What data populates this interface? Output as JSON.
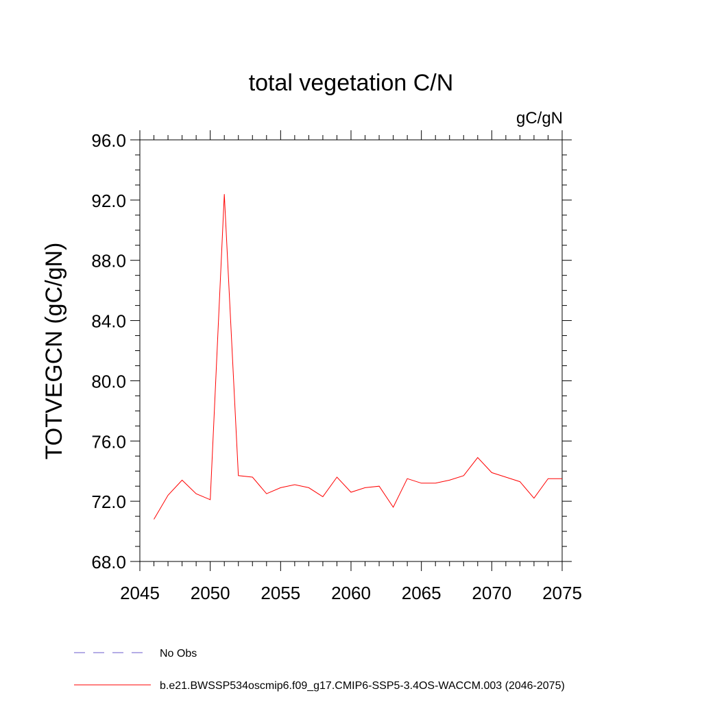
{
  "chart_data": {
    "type": "line",
    "title": "total vegetation C/N",
    "units": "gC/gN",
    "xlabel": "",
    "ylabel": "TOTVEGCN  (gC/gN)",
    "xlim": [
      2045,
      2075
    ],
    "ylim": [
      68.0,
      96.0
    ],
    "xticks": [
      "2045",
      "2050",
      "2055",
      "2060",
      "2065",
      "2070",
      "2075"
    ],
    "yticks": [
      "68.0",
      "72.0",
      "76.0",
      "80.0",
      "84.0",
      "88.0",
      "92.0",
      "96.0"
    ],
    "grid": false,
    "series": [
      {
        "name": "b.e21.BWSSP534oscmip6.f09_g17.CMIP6-SSP5-3.4OS-WACCM.003 (2046-2075)",
        "color": "#ff0000",
        "x": [
          2046,
          2047,
          2048,
          2049,
          2050,
          2051,
          2052,
          2053,
          2054,
          2055,
          2056,
          2057,
          2058,
          2059,
          2060,
          2061,
          2062,
          2063,
          2064,
          2065,
          2066,
          2067,
          2068,
          2069,
          2070,
          2071,
          2072,
          2073,
          2074,
          2075
        ],
        "values": [
          70.8,
          72.4,
          73.4,
          72.5,
          72.1,
          92.4,
          73.7,
          73.6,
          72.5,
          72.9,
          73.1,
          72.9,
          72.3,
          73.6,
          72.6,
          72.9,
          73.0,
          71.6,
          73.5,
          73.2,
          73.2,
          73.4,
          73.7,
          74.9,
          73.9,
          73.6,
          73.3,
          72.2,
          73.5,
          73.5
        ]
      }
    ],
    "legend": [
      {
        "label": "No Obs",
        "color": "#6a5acd",
        "style": "dashed"
      },
      {
        "label": "b.e21.BWSSP534oscmip6.f09_g17.CMIP6-SSP5-3.4OS-WACCM.003 (2046-2075)",
        "color": "#ff0000",
        "style": "solid"
      }
    ],
    "legend_position": "bottom-left"
  }
}
